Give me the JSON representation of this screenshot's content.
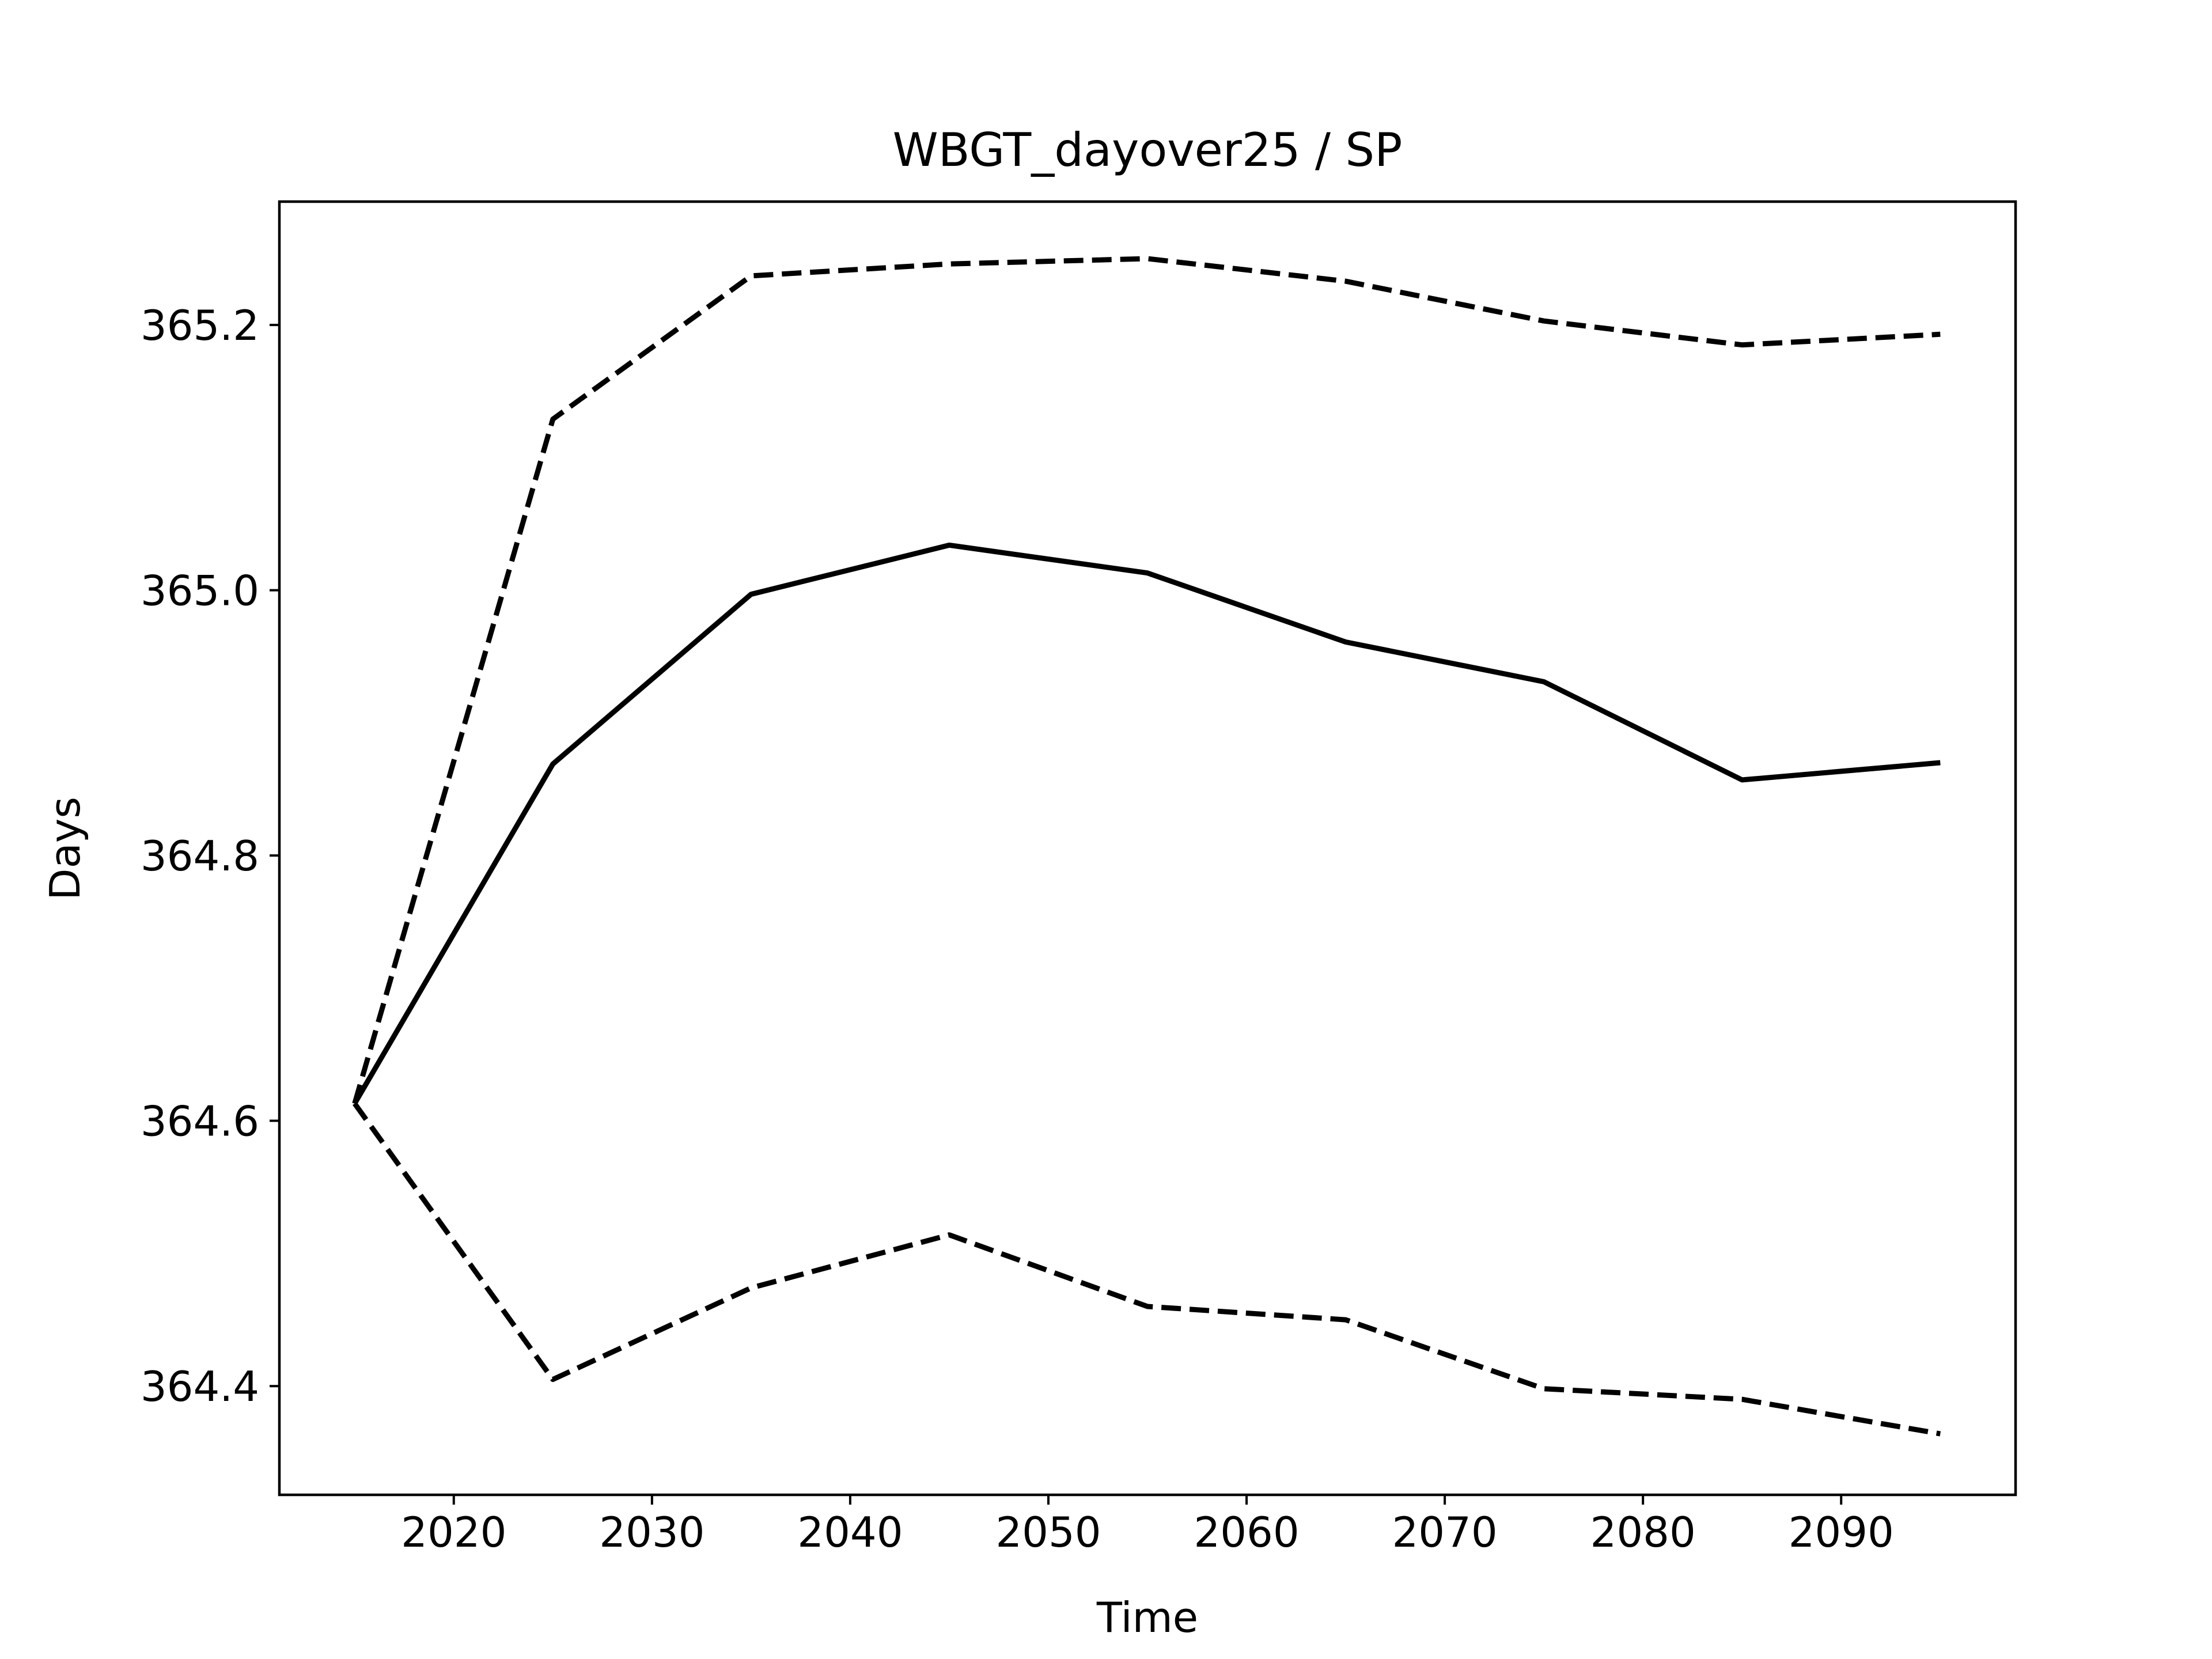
{
  "chart_data": {
    "type": "line",
    "title": "WBGT_dayover25 / SP",
    "xlabel": "Time",
    "ylabel": "Days",
    "xlim": [
      2011.2,
      2098.8
    ],
    "ylim": [
      364.318,
      365.293
    ],
    "xticks": [
      2020,
      2030,
      2040,
      2050,
      2060,
      2070,
      2080,
      2090
    ],
    "yticks": [
      364.4,
      364.6,
      364.8,
      365.0,
      365.2
    ],
    "ytick_labels": [
      "364.4",
      "364.6",
      "364.8",
      "365.0",
      "365.2"
    ],
    "grid": false,
    "x": [
      2015,
      2025,
      2035,
      2045,
      2055,
      2065,
      2075,
      2085,
      2095
    ],
    "series": [
      {
        "style": "solid",
        "values": [
          364.613,
          364.869,
          364.997,
          365.034,
          365.013,
          364.961,
          364.931,
          364.857,
          364.87
        ]
      },
      {
        "style": "dashed",
        "values": [
          364.613,
          365.129,
          365.237,
          365.246,
          365.25,
          365.233,
          365.203,
          365.185,
          365.193
        ]
      },
      {
        "style": "dashed",
        "values": [
          364.613,
          364.405,
          364.474,
          364.514,
          364.46,
          364.45,
          364.398,
          364.39,
          364.364
        ]
      }
    ],
    "line_color": "#000000"
  }
}
